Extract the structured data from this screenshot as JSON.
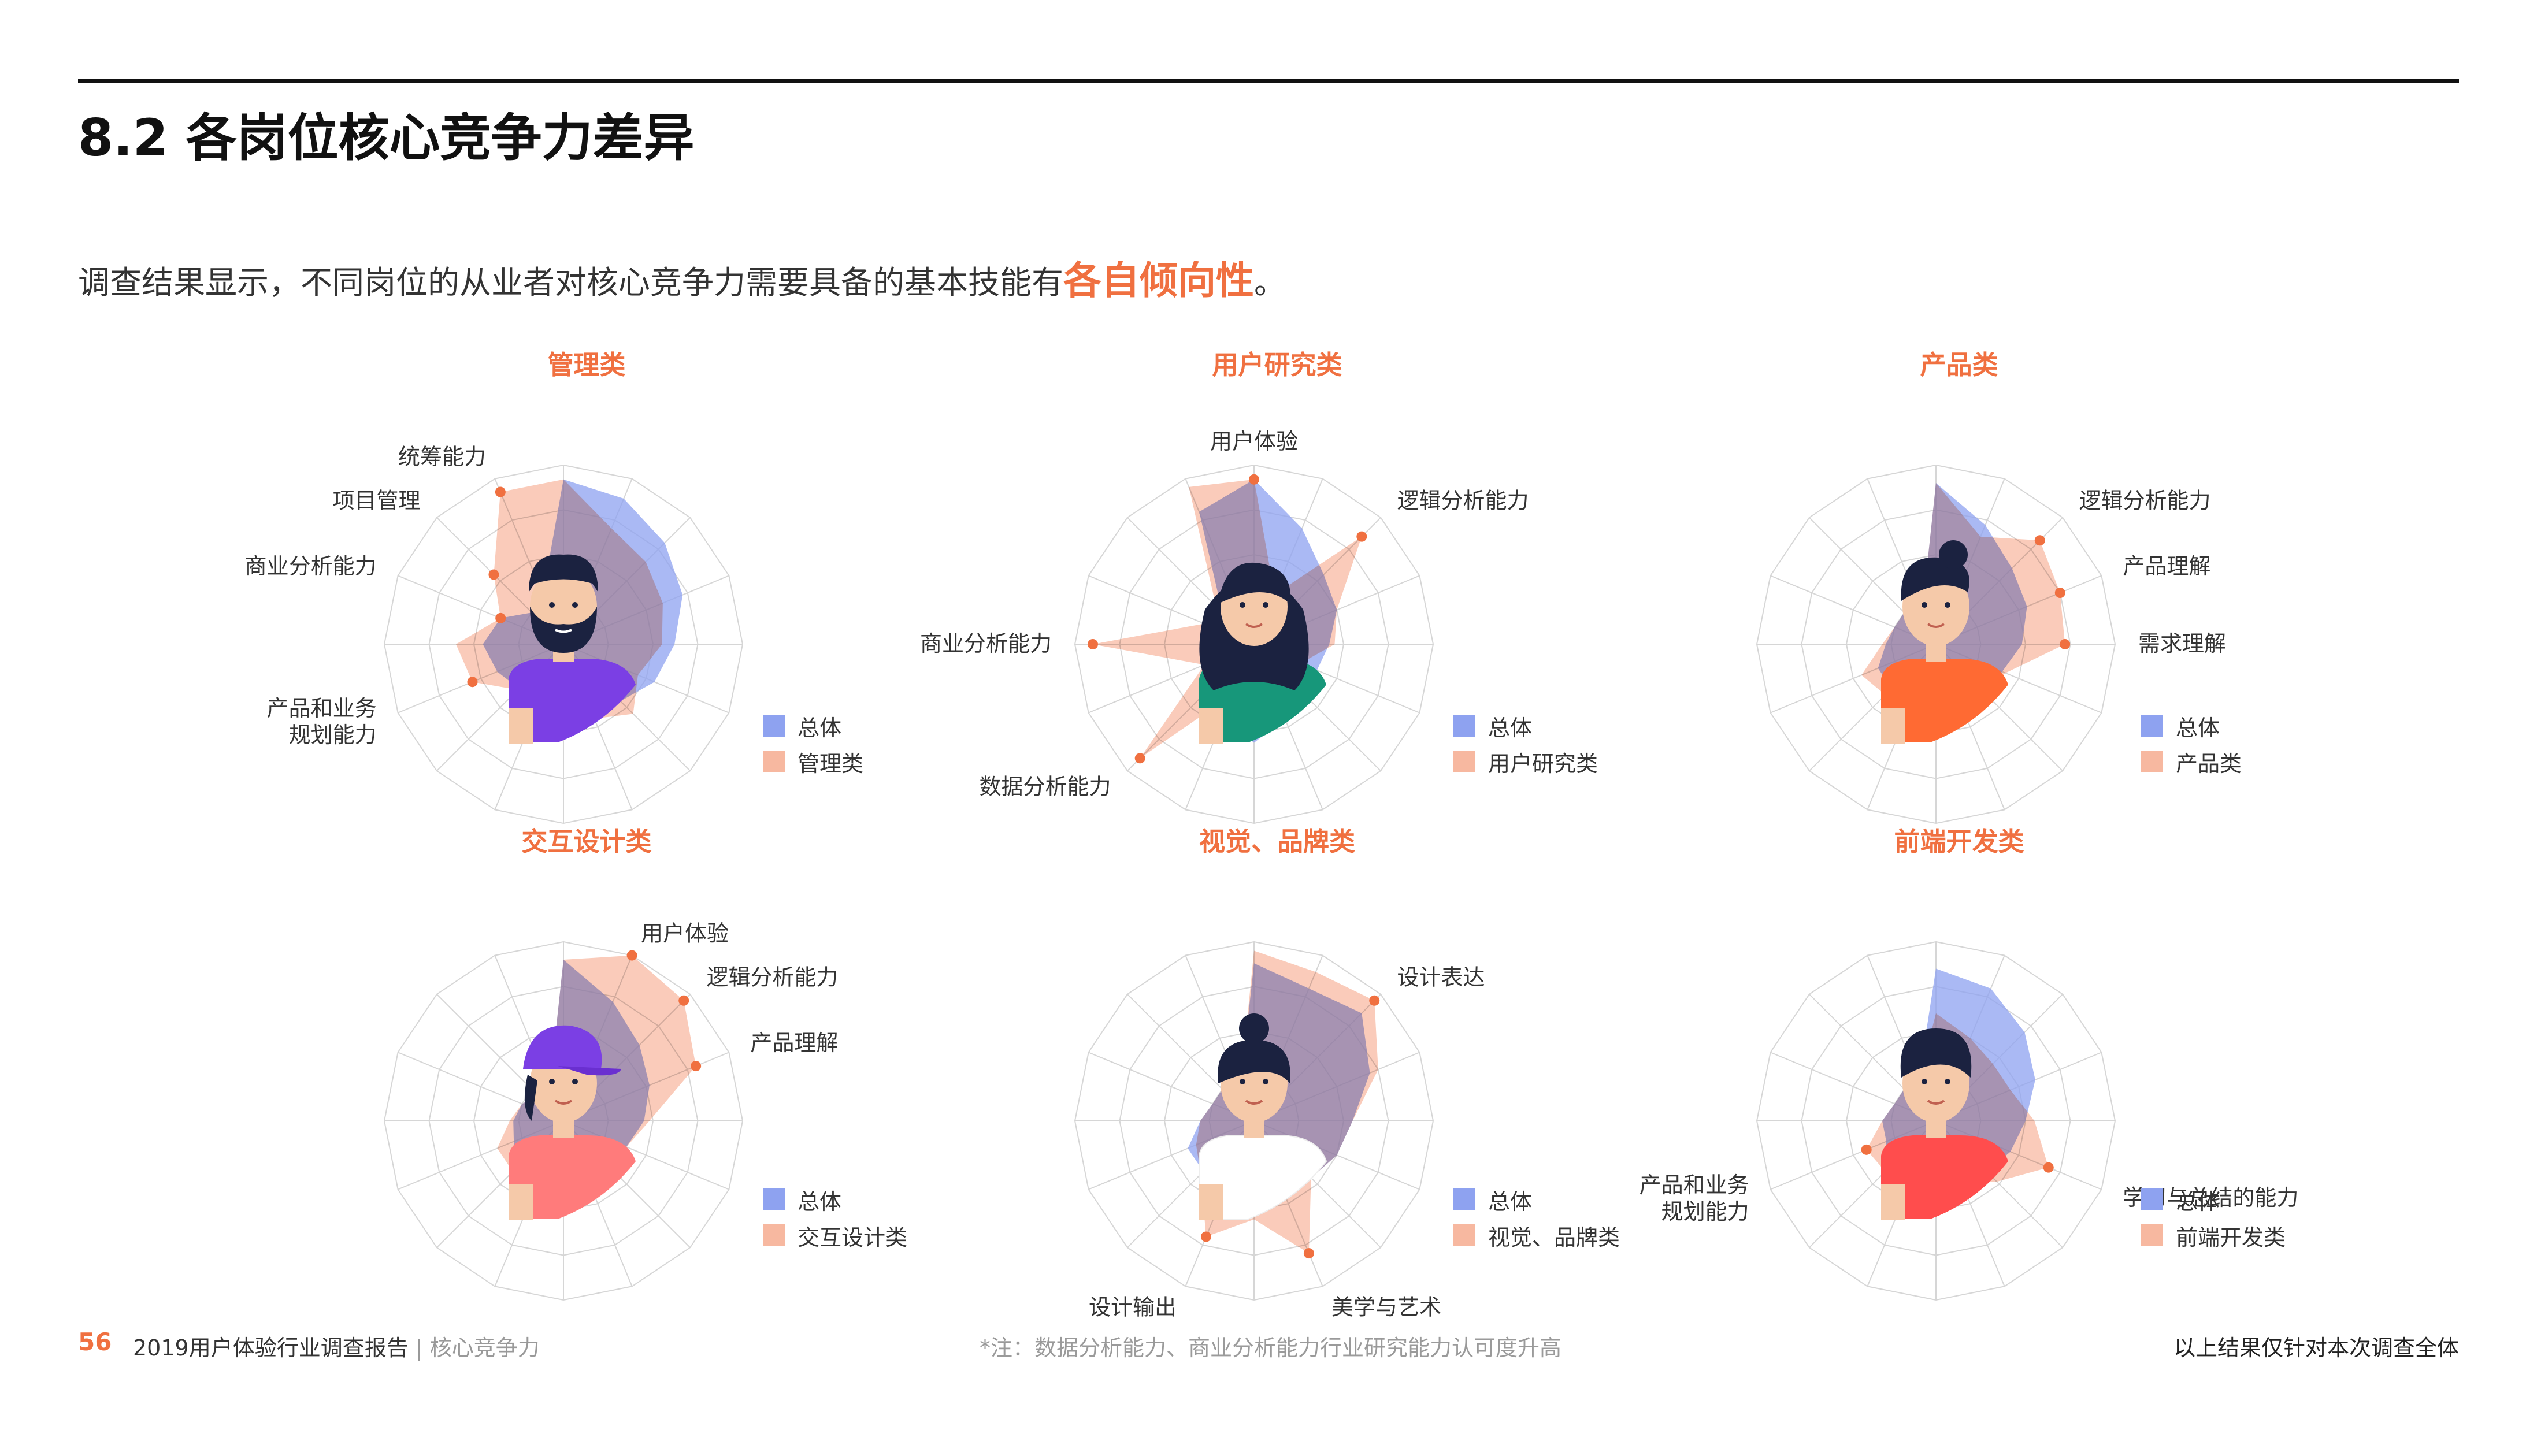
{
  "page_title": "8.2 各岗位核心竞争力差异",
  "intro": {
    "text": "调查结果显示，不同岗位的从业者对核心竞争力需要具备的基本技能有",
    "highlight": "各自倾向性",
    "end": "。"
  },
  "colors": {
    "accent": "#f07040",
    "overall_fill": "#8ea2f0",
    "role_fill": "#f7a98c",
    "overlap": "#9488b8",
    "grid": "#d6d6d6"
  },
  "chart_data": [
    {
      "type": "radar",
      "title": "管理类",
      "icon": "bearded-man-avatar-icon",
      "avatar_shirt": "#7b3fe4",
      "axis_labels": [
        "",
        "",
        "",
        "",
        "",
        "",
        "",
        "",
        "",
        "",
        "",
        "产品和业务\n规划能力",
        "",
        "商业分析能力",
        "项目管理",
        "统筹能力"
      ],
      "legend": [
        "总体",
        "管理类"
      ],
      "series": [
        {
          "values": [
            0.92,
            0.88,
            0.8,
            0.72,
            0.62,
            0.55,
            0.45,
            0.4,
            0.42,
            0.38,
            0.35,
            0.4,
            0.45,
            0.38,
            0.25,
            0.3
          ]
        },
        {
          "name": "管理类",
          "values": [
            0.92,
            0.7,
            0.65,
            0.6,
            0.55,
            0.45,
            0.55,
            0.45,
            0.4,
            0.32,
            0.36,
            0.55,
            0.6,
            0.38,
            0.55,
            0.92
          ]
        }
      ]
    },
    {
      "type": "radar",
      "title": "用户研究类",
      "icon": "curly-hair-woman-avatar-icon",
      "avatar_shirt": "#17977a",
      "axis_labels": [
        "用户体验",
        "",
        "逻辑分析能力",
        "",
        "",
        "",
        "",
        "",
        "",
        "",
        "数据分析能力",
        "",
        "商业分析能力",
        "",
        "",
        ""
      ],
      "legend": [
        "总体",
        "用户研究类"
      ],
      "series": [
        {
          "values": [
            0.92,
            0.7,
            0.55,
            0.5,
            0.42,
            0.38,
            0.38,
            0.45,
            0.55,
            0.45,
            0.35,
            0.32,
            0.25,
            0.25,
            0.25,
            0.8
          ]
        },
        {
          "name": "用户研究类",
          "values": [
            0.92,
            0.3,
            0.85,
            0.5,
            0.45,
            0.28,
            0.3,
            0.3,
            0.3,
            0.3,
            0.9,
            0.3,
            0.9,
            0.3,
            0.3,
            0.95
          ]
        }
      ]
    },
    {
      "type": "radar",
      "title": "产品类",
      "icon": "young-man-avatar-icon",
      "avatar_shirt": "#ff6a33",
      "axis_labels": [
        "",
        "",
        "逻辑分析能力",
        "产品理解",
        "需求理解",
        "",
        "",
        "",
        "",
        "",
        "",
        "",
        "",
        "",
        "",
        ""
      ],
      "legend": [
        "总体",
        "产品类"
      ],
      "series": [
        {
          "values": [
            0.9,
            0.72,
            0.6,
            0.55,
            0.48,
            0.4,
            0.38,
            0.3,
            0.38,
            0.38,
            0.35,
            0.35,
            0.28,
            0.25,
            0.25,
            0.2
          ]
        },
        {
          "name": "产品类",
          "values": [
            0.9,
            0.65,
            0.82,
            0.75,
            0.72,
            0.42,
            0.38,
            0.3,
            0.35,
            0.4,
            0.4,
            0.45,
            0.3,
            0.25,
            0.25,
            0.2
          ]
        }
      ]
    },
    {
      "type": "radar",
      "title": "交互设计类",
      "icon": "cap-woman-avatar-icon",
      "avatar_shirt": "#ff7b7b",
      "axis_labels": [
        "",
        "用户体验",
        "逻辑分析能力",
        "产品理解",
        "",
        "",
        "",
        "",
        "",
        "",
        "",
        "",
        "",
        "",
        "",
        ""
      ],
      "legend": [
        "总体",
        "交互设计类"
      ],
      "series": [
        {
          "values": [
            0.9,
            0.72,
            0.6,
            0.52,
            0.45,
            0.38,
            0.36,
            0.3,
            0.4,
            0.38,
            0.36,
            0.3,
            0.28,
            0.25,
            0.2,
            0.2
          ]
        },
        {
          "name": "交互设计类",
          "values": [
            0.9,
            1.0,
            0.95,
            0.8,
            0.48,
            0.38,
            0.3,
            0.3,
            0.38,
            0.4,
            0.4,
            0.4,
            0.3,
            0.25,
            0.2,
            0.2
          ]
        }
      ]
    },
    {
      "type": "radar",
      "title": "视觉、品牌类",
      "icon": "bun-hair-woman-avatar-icon",
      "avatar_shirt": "#ffffff",
      "axis_labels": [
        "",
        "",
        "设计表达",
        "",
        "",
        "",
        "",
        "美学与艺术",
        "",
        "设计输出",
        "",
        "",
        "",
        "",
        "",
        ""
      ],
      "legend": [
        "总体",
        "视觉、品牌类"
      ],
      "series": [
        {
          "values": [
            0.88,
            0.8,
            0.85,
            0.7,
            0.55,
            0.5,
            0.45,
            0.4,
            0.4,
            0.45,
            0.4,
            0.4,
            0.3,
            0.25,
            0.25,
            0.2
          ]
        },
        {
          "name": "视觉、品牌类",
          "values": [
            0.95,
            0.9,
            0.95,
            0.75,
            0.55,
            0.5,
            0.45,
            0.8,
            0.55,
            0.7,
            0.42,
            0.35,
            0.3,
            0.25,
            0.25,
            0.2
          ]
        }
      ]
    },
    {
      "type": "radar",
      "title": "前端开发类",
      "icon": "developer-man-avatar-icon",
      "avatar_shirt": "#ff4d4d",
      "axis_labels": [
        "",
        "",
        "",
        "",
        "",
        "学习与总结的能力",
        "",
        "",
        "",
        "",
        "",
        "产品和业务\n规划能力",
        "",
        "",
        "",
        ""
      ],
      "legend": [
        "总体",
        "前端开发类"
      ],
      "series": [
        {
          "values": [
            0.85,
            0.8,
            0.7,
            0.6,
            0.5,
            0.45,
            0.4,
            0.35,
            0.38,
            0.4,
            0.4,
            0.3,
            0.3,
            0.25,
            0.25,
            0.25
          ]
        },
        {
          "name": "前端开发类",
          "values": [
            0.6,
            0.5,
            0.45,
            0.45,
            0.55,
            0.68,
            0.48,
            0.38,
            0.38,
            0.45,
            0.4,
            0.42,
            0.3,
            0.25,
            0.25,
            0.25
          ]
        }
      ]
    }
  ],
  "footer": {
    "page_number": "56",
    "report_title": "2019用户体验行业调查报告",
    "separator": "|",
    "section": "核心竞争力",
    "note": "*注：数据分析能力、商业分析能力行业研究能力认可度升高",
    "right_note": "以上结果仅针对本次调查全体"
  }
}
